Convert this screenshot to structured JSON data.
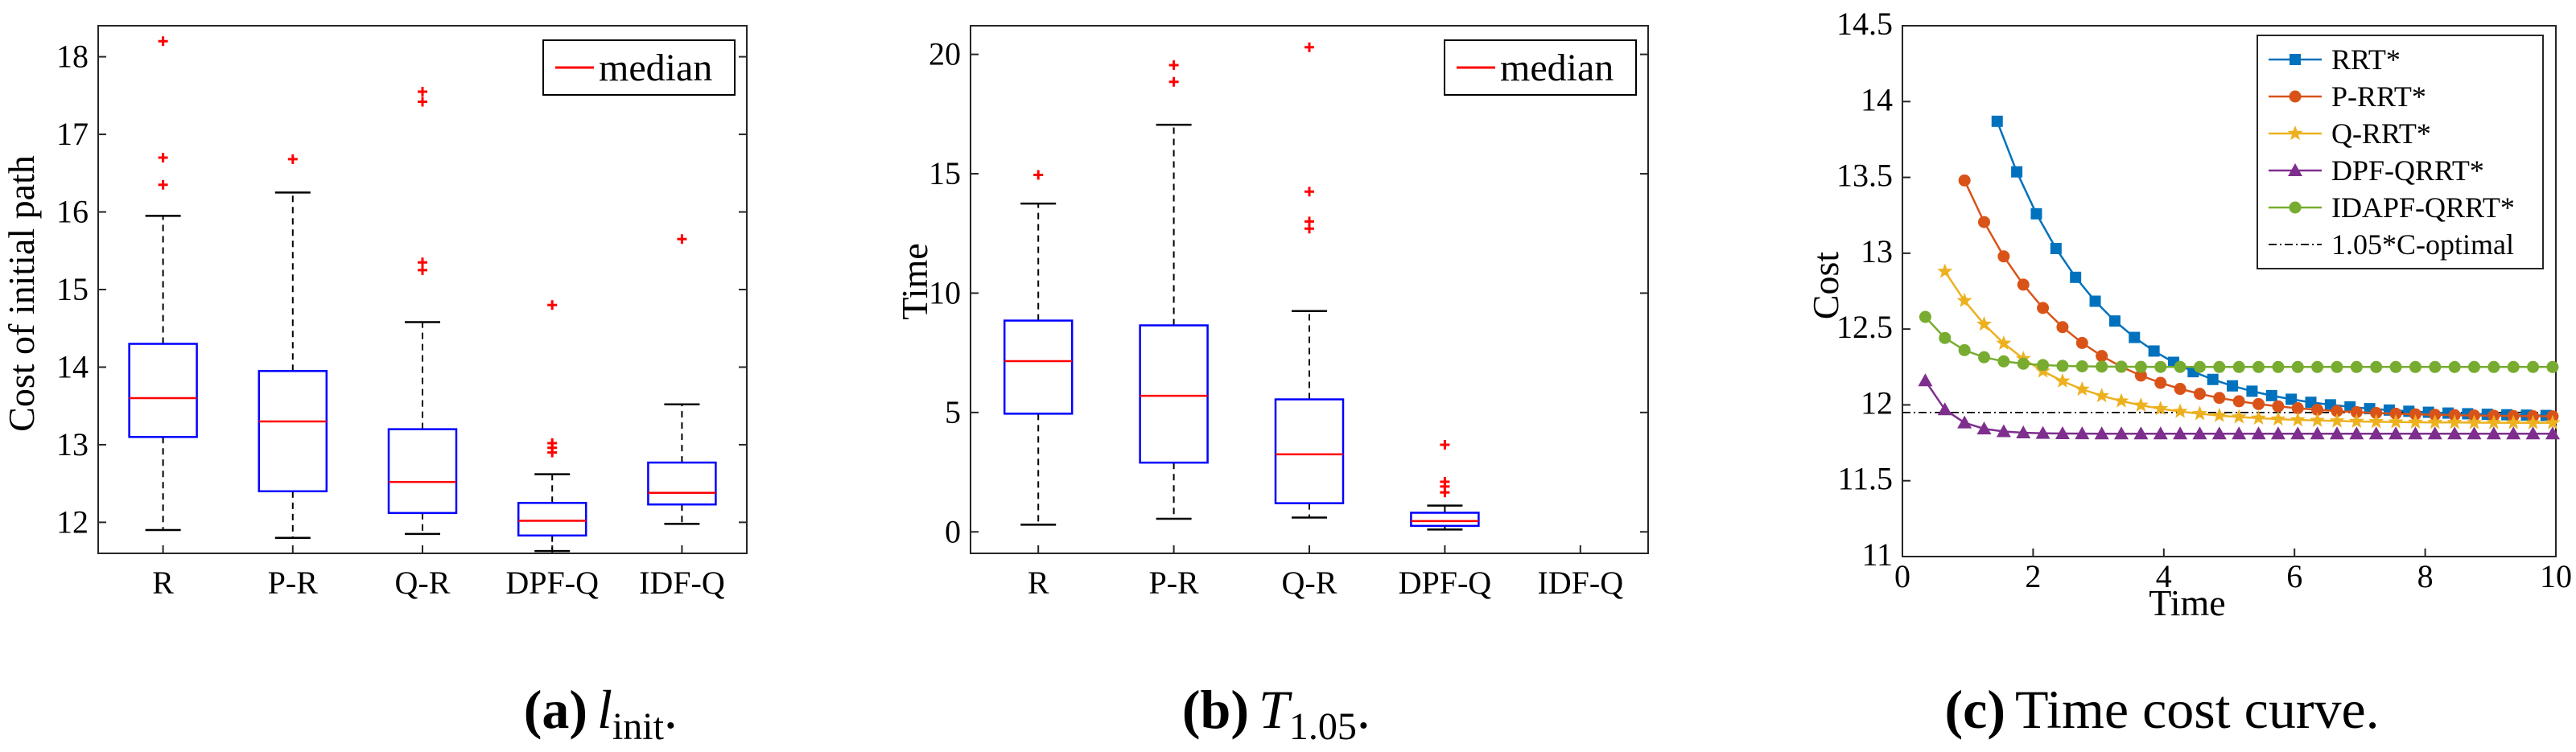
{
  "chart_data": [
    {
      "type": "box",
      "categories": [
        "R",
        "P-R",
        "Q-R",
        "DPF-Q",
        "IDF-Q"
      ],
      "ylabel": "Cost of initial path",
      "ylim": [
        11.6,
        18.4
      ],
      "yticks": [
        12,
        13,
        14,
        15,
        16,
        17,
        18
      ],
      "legend": "median",
      "boxes": [
        {
          "q1": 13.1,
          "median": 13.6,
          "q3": 14.3,
          "whisker_low": 11.9,
          "whisker_high": 15.95,
          "outliers": [
            16.35,
            16.7,
            18.2
          ]
        },
        {
          "q1": 12.4,
          "median": 13.3,
          "q3": 13.95,
          "whisker_low": 11.8,
          "whisker_high": 16.25,
          "outliers": [
            16.68
          ]
        },
        {
          "q1": 12.12,
          "median": 12.52,
          "q3": 13.2,
          "whisker_low": 11.85,
          "whisker_high": 14.58,
          "outliers": [
            15.25,
            15.35,
            17.42,
            17.55
          ]
        },
        {
          "q1": 11.83,
          "median": 12.02,
          "q3": 12.25,
          "whisker_low": 11.63,
          "whisker_high": 12.62,
          "outliers": [
            12.9,
            12.96,
            13.02,
            14.8
          ]
        },
        {
          "q1": 12.23,
          "median": 12.38,
          "q3": 12.77,
          "whisker_low": 11.98,
          "whisker_high": 13.52,
          "outliers": [
            15.65
          ]
        }
      ],
      "caption_label": "(a)",
      "caption_text": "l",
      "caption_sub": "init",
      "caption_end": "."
    },
    {
      "type": "box",
      "categories": [
        "R",
        "P-R",
        "Q-R",
        "DPF-Q",
        "IDF-Q"
      ],
      "ylabel": "Time",
      "ylim": [
        -0.9,
        21.2
      ],
      "yticks": [
        0,
        5,
        10,
        15,
        20
      ],
      "legend": "median",
      "boxes": [
        {
          "q1": 4.95,
          "median": 7.15,
          "q3": 8.85,
          "whisker_low": 0.3,
          "whisker_high": 13.75,
          "outliers": [
            14.95
          ]
        },
        {
          "q1": 2.9,
          "median": 5.7,
          "q3": 8.65,
          "whisker_low": 0.55,
          "whisker_high": 17.05,
          "outliers": [
            18.85,
            19.55
          ]
        },
        {
          "q1": 1.2,
          "median": 3.25,
          "q3": 5.55,
          "whisker_low": 0.6,
          "whisker_high": 9.25,
          "outliers": [
            12.7,
            13.0,
            14.25,
            20.3
          ]
        },
        {
          "q1": 0.25,
          "median": 0.45,
          "q3": 0.8,
          "whisker_low": 0.1,
          "whisker_high": 1.1,
          "outliers": [
            1.65,
            1.9,
            2.1,
            3.65
          ]
        },
        null
      ],
      "caption_label": "(b)",
      "caption_text": "T",
      "caption_sub": "1.05",
      "caption_end": "."
    },
    {
      "type": "line",
      "xlabel": "Time",
      "ylabel": "Cost",
      "xlim": [
        0,
        10
      ],
      "ylim": [
        11,
        14.5
      ],
      "xticks": [
        0,
        2,
        4,
        6,
        8,
        10
      ],
      "yticks": [
        11,
        11.5,
        12,
        12.5,
        13,
        13.5,
        14,
        14.5
      ],
      "series": [
        {
          "name": "RRT*",
          "color": "#0072BD",
          "marker": "square",
          "x0": 1.45,
          "start": 13.87,
          "final": 11.92,
          "tau": 1.6
        },
        {
          "name": "P-RRT*",
          "color": "#D95319",
          "marker": "circle",
          "x0": 0.95,
          "start": 13.48,
          "final": 11.92,
          "tau": 1.55
        },
        {
          "name": "Q-RRT*",
          "color": "#EDB120",
          "marker": "star",
          "x0": 0.65,
          "start": 12.88,
          "final": 11.88,
          "tau": 1.4
        },
        {
          "name": "DPF-QRRT*",
          "color": "#7E2F8E",
          "marker": "triangle",
          "x0": 0.35,
          "start": 12.16,
          "final": 11.81,
          "tau": 0.38
        },
        {
          "name": "IDAPF-QRRT*",
          "color": "#77AC30",
          "marker": "circle",
          "x0": 0.35,
          "start": 12.58,
          "final": 12.25,
          "tau": 0.55
        }
      ],
      "reference": {
        "name": "1.05*C-optimal",
        "y": 11.95,
        "color": "#000000"
      },
      "caption_label": "(c)",
      "caption_text": "Time cost curve."
    }
  ],
  "colors": {
    "box": "#0000FF",
    "median": "#FF0000",
    "outlier": "#FF0000",
    "whisker": "#000000"
  }
}
